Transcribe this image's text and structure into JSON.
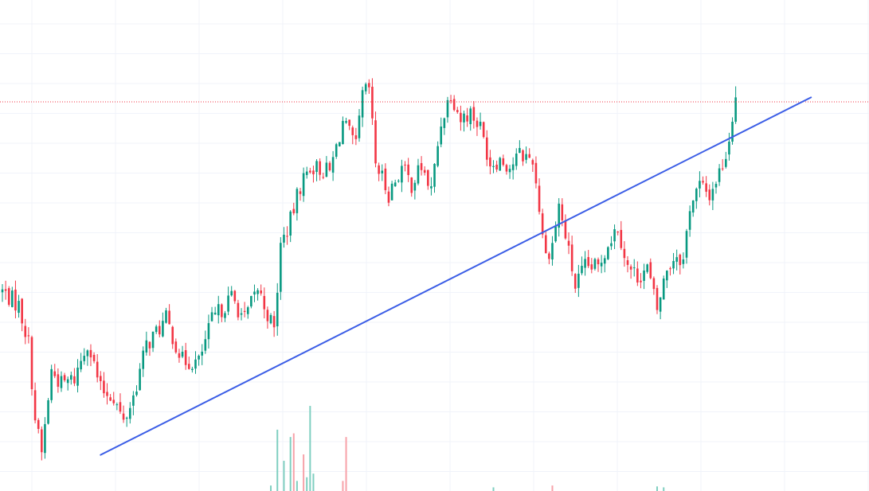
{
  "colors": {
    "background": "#ffffff",
    "grid": "#f0f3fa",
    "up": "#089981",
    "down": "#f23645",
    "up_volume": "#7fcfc0",
    "down_volume": "#f7a2a9",
    "trendline": "#3c5ee6",
    "price_line": "#f23645"
  },
  "chart_data": {
    "type": "candlestick",
    "title": "",
    "xlabel": "",
    "ylabel": "",
    "x_unit": "bar index",
    "ylim": [
      0,
      100
    ],
    "grid": true,
    "legend": "none",
    "last_price_line": 88.5,
    "trendline": {
      "start": [
        30,
        8.7
      ],
      "end": [
        247,
        89.5
      ]
    },
    "anchors": [
      [
        0,
        45.7
      ],
      [
        5,
        42.5
      ],
      [
        8,
        34
      ],
      [
        10,
        17
      ],
      [
        12,
        9
      ],
      [
        15,
        27.7
      ],
      [
        18,
        24.7
      ],
      [
        22,
        25.9
      ],
      [
        26,
        34.4
      ],
      [
        30,
        23.5
      ],
      [
        34,
        21.9
      ],
      [
        37,
        15.9
      ],
      [
        40,
        21.9
      ],
      [
        44,
        33.5
      ],
      [
        50,
        39.3
      ],
      [
        55,
        30
      ],
      [
        60,
        29.6
      ],
      [
        64,
        39.1
      ],
      [
        70,
        44.4
      ],
      [
        74,
        39.3
      ],
      [
        78,
        46.3
      ],
      [
        83,
        36.8
      ],
      [
        85,
        56
      ],
      [
        88,
        61.6
      ],
      [
        91,
        69.6
      ],
      [
        94,
        74
      ],
      [
        100,
        72.6
      ],
      [
        104,
        83.9
      ],
      [
        108,
        78.1
      ],
      [
        110,
        89.9
      ],
      [
        112,
        91.5
      ],
      [
        114,
        74.7
      ],
      [
        118,
        67.8
      ],
      [
        122,
        73.6
      ],
      [
        125,
        69.9
      ],
      [
        128,
        73.8
      ],
      [
        131,
        68.3
      ],
      [
        134,
        83.9
      ],
      [
        137,
        90.8
      ],
      [
        140,
        84.6
      ],
      [
        143,
        86.2
      ],
      [
        146,
        82.7
      ],
      [
        149,
        74.7
      ],
      [
        152,
        75.6
      ],
      [
        155,
        73.8
      ],
      [
        158,
        76.6
      ],
      [
        162,
        75.6
      ],
      [
        164,
        64.7
      ],
      [
        166,
        53.6
      ],
      [
        168,
        56.5
      ],
      [
        170,
        65.1
      ],
      [
        173,
        54.5
      ],
      [
        175,
        46.8
      ],
      [
        178,
        51.1
      ],
      [
        182,
        51.1
      ],
      [
        185,
        56.7
      ],
      [
        188,
        60.5
      ],
      [
        191,
        51.1
      ],
      [
        194,
        49.1
      ],
      [
        197,
        50.9
      ],
      [
        200,
        41.4
      ],
      [
        203,
        50.9
      ],
      [
        206,
        54.2
      ],
      [
        208,
        52.5
      ],
      [
        210,
        65.1
      ],
      [
        213,
        69.6
      ],
      [
        216,
        67.4
      ],
      [
        219,
        72.6
      ],
      [
        221,
        76.6
      ]
    ],
    "volume": {
      "ylim": [
        0,
        100
      ],
      "bars": [
        {
          "x": 82,
          "v": 6,
          "dir": "up"
        },
        {
          "x": 84,
          "v": 67,
          "dir": "up"
        },
        {
          "x": 86,
          "v": 33,
          "dir": "up"
        },
        {
          "x": 88,
          "v": 59,
          "dir": "up"
        },
        {
          "x": 89,
          "v": 63,
          "dir": "down"
        },
        {
          "x": 90,
          "v": 11,
          "dir": "up"
        },
        {
          "x": 92,
          "v": 40,
          "dir": "down"
        },
        {
          "x": 93,
          "v": 15,
          "dir": "up"
        },
        {
          "x": 94,
          "v": 93,
          "dir": "up"
        },
        {
          "x": 95,
          "v": 19,
          "dir": "up"
        },
        {
          "x": 104,
          "v": 11,
          "dir": "down"
        },
        {
          "x": 105,
          "v": 59,
          "dir": "down"
        },
        {
          "x": 150,
          "v": 4,
          "dir": "up"
        },
        {
          "x": 168,
          "v": 6,
          "dir": "down"
        },
        {
          "x": 200,
          "v": 5,
          "dir": "up"
        },
        {
          "x": 202,
          "v": 4,
          "dir": "up"
        }
      ]
    }
  }
}
